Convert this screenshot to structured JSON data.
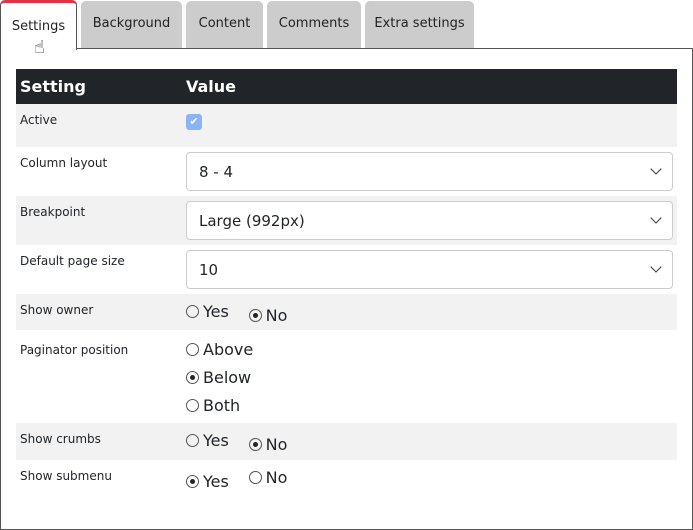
{
  "tabs": [
    {
      "label": "Settings",
      "active": true
    },
    {
      "label": "Background"
    },
    {
      "label": "Content"
    },
    {
      "label": "Comments"
    },
    {
      "label": "Extra settings"
    }
  ],
  "table": {
    "headers": [
      "Setting",
      "Value"
    ],
    "active": {
      "label": "Active",
      "checked": true
    },
    "column_layout": {
      "label": "Column layout",
      "value": "8 - 4"
    },
    "breakpoint": {
      "label": "Breakpoint",
      "value": "Large (992px)"
    },
    "page_size": {
      "label": "Default page size",
      "value": "10"
    },
    "show_owner": {
      "label": "Show owner",
      "options": [
        "Yes",
        "No"
      ],
      "selected": "No"
    },
    "paginator": {
      "label": "Paginator position",
      "options": [
        "Above",
        "Below",
        "Both"
      ],
      "selected": "Below"
    },
    "show_crumbs": {
      "label": "Show crumbs",
      "options": [
        "Yes",
        "No"
      ],
      "selected": "No"
    },
    "show_submenu": {
      "label": "Show submenu",
      "options": [
        "Yes",
        "No"
      ],
      "selected": "Yes"
    }
  },
  "colors": {
    "active_tab_accent": "#dc3545",
    "header_bg": "#212529",
    "checkbox": "#8ab4f8"
  }
}
